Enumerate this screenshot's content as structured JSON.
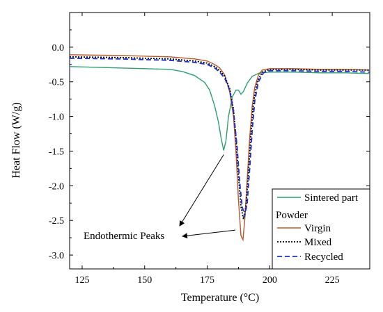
{
  "chart_data": {
    "type": "line",
    "xlabel": "Temperature (°C)",
    "ylabel": "Heat Flow (W/g)",
    "xlim": [
      120,
      240
    ],
    "ylim": [
      -3.2,
      0.5
    ],
    "x_ticks": [
      125,
      150,
      175,
      200,
      225
    ],
    "x_tick_labels": [
      "125",
      "150",
      "175",
      "200",
      "225"
    ],
    "y_ticks": [
      0.0,
      -0.5,
      -1.0,
      -1.5,
      -2.0,
      -2.5,
      -3.0
    ],
    "y_tick_labels": [
      "0.0",
      "-0.5",
      "-1.0",
      "-1.5",
      "-2.0",
      "-2.5",
      "-3.0"
    ],
    "grid": false,
    "legend": {
      "placement": "bottom-right",
      "group_header": "Powder",
      "entries": [
        "Sintered part",
        "Virgin",
        "Mixed",
        "Recycled"
      ]
    },
    "annotation": {
      "text": "Endothermic Peaks",
      "targets": [
        [
          181.6,
          -1.49
        ],
        [
          188.5,
          -2.72
        ]
      ]
    },
    "series": [
      {
        "name": "Sintered part",
        "color": "#2e9e6e",
        "style": "solid",
        "points": [
          [
            120,
            -0.28
          ],
          [
            130,
            -0.29
          ],
          [
            140,
            -0.3
          ],
          [
            150,
            -0.31
          ],
          [
            160,
            -0.32
          ],
          [
            165,
            -0.35
          ],
          [
            170,
            -0.41
          ],
          [
            174,
            -0.51
          ],
          [
            176,
            -0.62
          ],
          [
            178,
            -0.85
          ],
          [
            179.5,
            -1.08
          ],
          [
            180.5,
            -1.3
          ],
          [
            181.6,
            -1.49
          ],
          [
            182.5,
            -1.35
          ],
          [
            183.5,
            -1.0
          ],
          [
            185,
            -0.72
          ],
          [
            186.5,
            -0.62
          ],
          [
            187.5,
            -0.62
          ],
          [
            188.5,
            -0.68
          ],
          [
            189.5,
            -0.64
          ],
          [
            191,
            -0.52
          ],
          [
            193,
            -0.42
          ],
          [
            196,
            -0.37
          ],
          [
            200,
            -0.36
          ],
          [
            210,
            -0.36
          ],
          [
            220,
            -0.37
          ],
          [
            230,
            -0.37
          ],
          [
            240,
            -0.38
          ]
        ]
      },
      {
        "name": "Virgin",
        "color": "#b5582c",
        "style": "solid",
        "points": [
          [
            120,
            -0.11
          ],
          [
            130,
            -0.115
          ],
          [
            140,
            -0.12
          ],
          [
            150,
            -0.13
          ],
          [
            160,
            -0.14
          ],
          [
            170,
            -0.17
          ],
          [
            175,
            -0.2
          ],
          [
            178,
            -0.25
          ],
          [
            180,
            -0.3
          ],
          [
            182,
            -0.4
          ],
          [
            184,
            -0.65
          ],
          [
            185.5,
            -1.0
          ],
          [
            186.5,
            -1.5
          ],
          [
            187.5,
            -2.2
          ],
          [
            188.5,
            -2.72
          ],
          [
            189.3,
            -2.78
          ],
          [
            190,
            -2.5
          ],
          [
            191,
            -1.9
          ],
          [
            192,
            -1.3
          ],
          [
            193,
            -0.85
          ],
          [
            194,
            -0.58
          ],
          [
            195.5,
            -0.4
          ],
          [
            197,
            -0.33
          ],
          [
            200,
            -0.31
          ],
          [
            210,
            -0.31
          ],
          [
            220,
            -0.32
          ],
          [
            230,
            -0.32
          ],
          [
            240,
            -0.33
          ]
        ]
      },
      {
        "name": "Mixed",
        "color": "#000000",
        "style": "dotted",
        "points": [
          [
            120,
            -0.14
          ],
          [
            130,
            -0.145
          ],
          [
            140,
            -0.15
          ],
          [
            150,
            -0.16
          ],
          [
            160,
            -0.17
          ],
          [
            170,
            -0.2
          ],
          [
            175,
            -0.23
          ],
          [
            178,
            -0.28
          ],
          [
            180,
            -0.34
          ],
          [
            182,
            -0.42
          ],
          [
            184,
            -0.6
          ],
          [
            185.5,
            -0.9
          ],
          [
            186.5,
            -1.3
          ],
          [
            187.5,
            -1.85
          ],
          [
            188.5,
            -2.3
          ],
          [
            189.5,
            -2.48
          ],
          [
            190.5,
            -2.3
          ],
          [
            191.5,
            -1.8
          ],
          [
            192.5,
            -1.25
          ],
          [
            193.5,
            -0.8
          ],
          [
            195,
            -0.5
          ],
          [
            197,
            -0.36
          ],
          [
            200,
            -0.32
          ],
          [
            210,
            -0.32
          ],
          [
            220,
            -0.33
          ],
          [
            230,
            -0.33
          ],
          [
            240,
            -0.33
          ]
        ]
      },
      {
        "name": "Recycled",
        "color": "#1c2fd1",
        "style": "dashed",
        "points": [
          [
            120,
            -0.16
          ],
          [
            130,
            -0.165
          ],
          [
            140,
            -0.17
          ],
          [
            150,
            -0.18
          ],
          [
            160,
            -0.19
          ],
          [
            170,
            -0.22
          ],
          [
            175,
            -0.25
          ],
          [
            178,
            -0.3
          ],
          [
            180,
            -0.36
          ],
          [
            182,
            -0.45
          ],
          [
            184,
            -0.62
          ],
          [
            185.5,
            -0.92
          ],
          [
            187,
            -1.45
          ],
          [
            188,
            -1.95
          ],
          [
            189,
            -2.3
          ],
          [
            190,
            -2.44
          ],
          [
            191,
            -2.25
          ],
          [
            192,
            -1.75
          ],
          [
            193,
            -1.2
          ],
          [
            194,
            -0.78
          ],
          [
            195.5,
            -0.5
          ],
          [
            197.5,
            -0.37
          ],
          [
            200,
            -0.34
          ],
          [
            210,
            -0.34
          ],
          [
            220,
            -0.35
          ],
          [
            230,
            -0.35
          ],
          [
            240,
            -0.36
          ]
        ]
      }
    ]
  }
}
